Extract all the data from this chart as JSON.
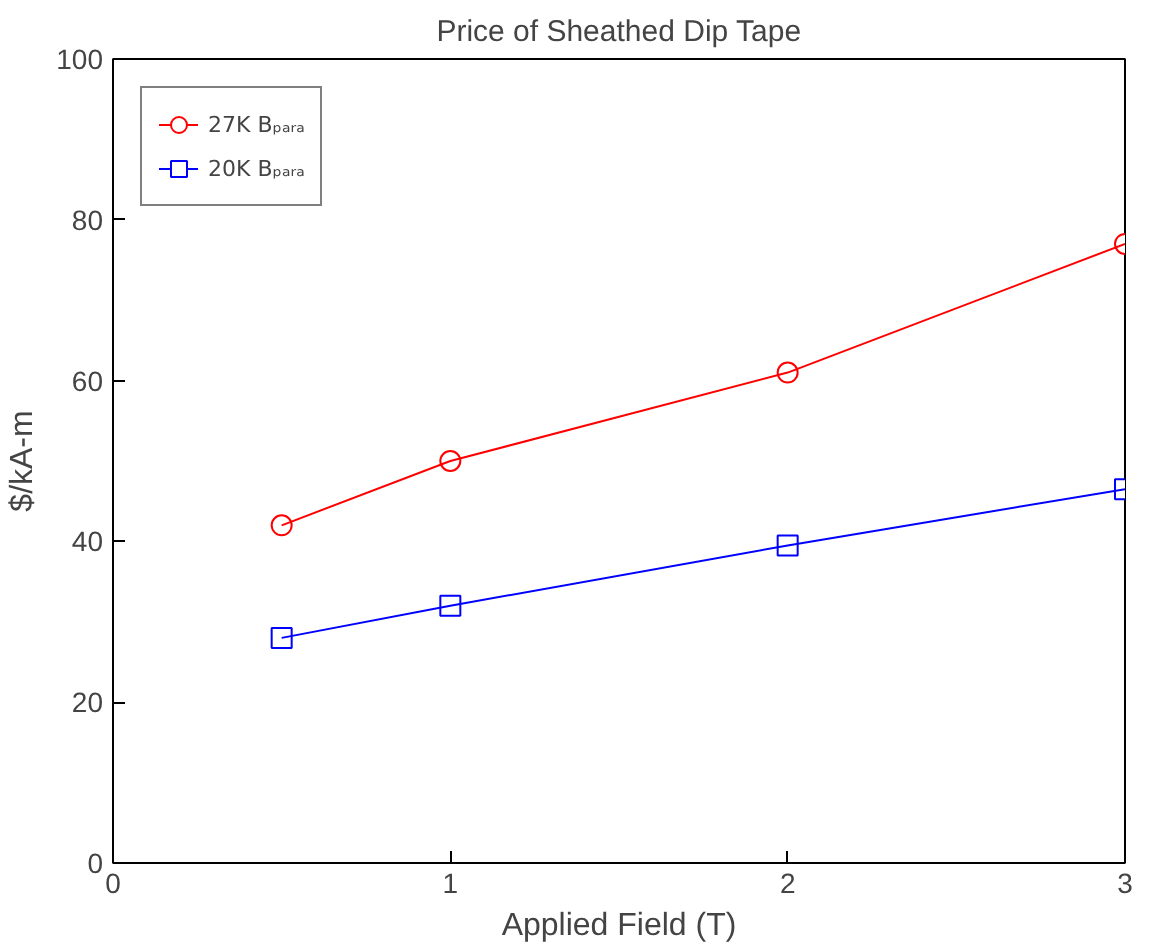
{
  "chart_data": {
    "type": "line",
    "title": "Price of Sheathed Dip Tape",
    "xlabel": "Applied Field (T)",
    "ylabel": "$/kA-m",
    "x": [
      0.5,
      1,
      2,
      3
    ],
    "series": [
      {
        "name": "27K Bₚₐᵣₐ",
        "color": "#ff0000",
        "values": [
          42,
          50,
          61,
          77
        ],
        "marker": "circle"
      },
      {
        "name": "20K Bₚₐᵣₐ",
        "color": "#0000ff",
        "values": [
          28,
          32,
          39.5,
          46.5
        ],
        "marker": "square"
      }
    ],
    "xlim": [
      0,
      3
    ],
    "ylim": [
      0,
      100
    ],
    "xticks": [
      0,
      1,
      2,
      3
    ],
    "yticks": [
      0,
      20,
      40,
      60,
      80,
      100
    ],
    "grid": false,
    "legend": "top left",
    "line_style": "solid"
  }
}
